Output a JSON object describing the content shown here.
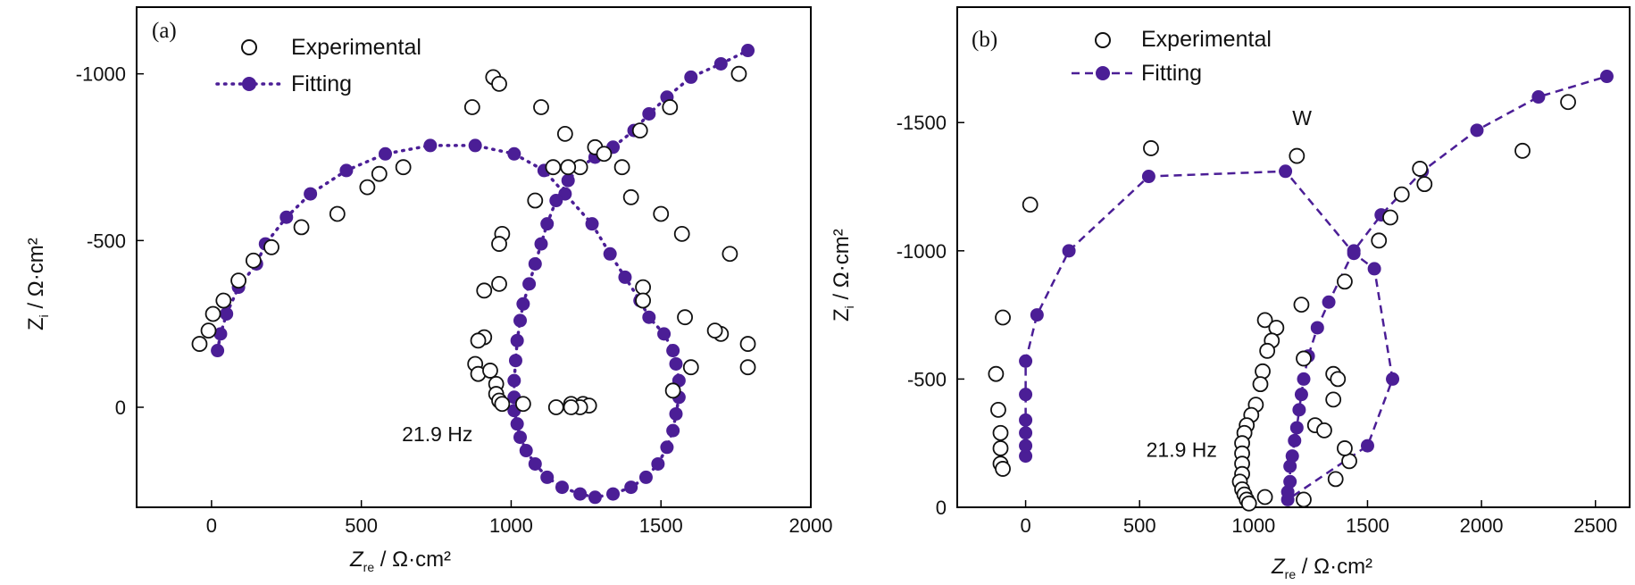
{
  "chart_data": [
    {
      "id": "a",
      "type": "scatter",
      "panel_label": "(a)",
      "xlabel": "Z_re / Ω·cm²",
      "xlabel_main": "Z",
      "xlabel_sub": "re",
      "xlabel_unit": " / Ω·cm²",
      "ylabel": "Z_i / Ω·cm²",
      "ylabel_main": "Z",
      "ylabel_sub": "i",
      "ylabel_unit": " / Ω·cm²",
      "xlim": [
        -250,
        2000
      ],
      "ylim": [
        300,
        -1200
      ],
      "xticks": [
        0,
        500,
        1000,
        1500,
        2000
      ],
      "xtick_labels": [
        "0",
        "500",
        "1000",
        "1500",
        "2000"
      ],
      "yticks": [
        0,
        -500,
        -1000
      ],
      "ytick_labels": [
        "0",
        "-500",
        "-1000"
      ],
      "legend": {
        "experimental": "Experimental",
        "fitting": "Fitting",
        "position": "top-center"
      },
      "annotations": [
        {
          "text": "21.9 Hz",
          "x": 850,
          "y": 80
        }
      ],
      "series": [
        {
          "name": "Experimental",
          "style": "open-circle",
          "points": [
            [
              -40,
              -190
            ],
            [
              -10,
              -230
            ],
            [
              5,
              -280
            ],
            [
              40,
              -320
            ],
            [
              90,
              -380
            ],
            [
              140,
              -440
            ],
            [
              200,
              -480
            ],
            [
              300,
              -540
            ],
            [
              420,
              -580
            ],
            [
              520,
              -660
            ],
            [
              560,
              -700
            ],
            [
              640,
              -720
            ],
            [
              870,
              -900
            ],
            [
              940,
              -990
            ],
            [
              960,
              -970
            ],
            [
              1100,
              -900
            ],
            [
              1180,
              -820
            ],
            [
              1280,
              -780
            ],
            [
              1310,
              -760
            ],
            [
              1530,
              -900
            ],
            [
              1760,
              -1000
            ],
            [
              1430,
              -830
            ],
            [
              1370,
              -720
            ],
            [
              1230,
              -720
            ],
            [
              1190,
              -720
            ],
            [
              1140,
              -720
            ],
            [
              1080,
              -620
            ],
            [
              1400,
              -630
            ],
            [
              1500,
              -580
            ],
            [
              1570,
              -520
            ],
            [
              1730,
              -460
            ],
            [
              1790,
              -190
            ],
            [
              1790,
              -120
            ],
            [
              1700,
              -220
            ],
            [
              1680,
              -230
            ],
            [
              1580,
              -270
            ],
            [
              1600,
              -120
            ],
            [
              1540,
              -50
            ],
            [
              1440,
              -360
            ],
            [
              1440,
              -320
            ],
            [
              970,
              -520
            ],
            [
              960,
              -490
            ],
            [
              960,
              -370
            ],
            [
              910,
              -350
            ],
            [
              910,
              -210
            ],
            [
              890,
              -200
            ],
            [
              880,
              -130
            ],
            [
              890,
              -100
            ],
            [
              930,
              -110
            ],
            [
              950,
              -70
            ],
            [
              950,
              -40
            ],
            [
              960,
              -20
            ],
            [
              970,
              -10
            ],
            [
              1040,
              -10
            ],
            [
              1150,
              0
            ],
            [
              1200,
              -10
            ],
            [
              1240,
              -10
            ],
            [
              1260,
              -5
            ],
            [
              1230,
              0
            ],
            [
              1200,
              0
            ]
          ]
        },
        {
          "name": "Fitting",
          "style": "filled-circle-dotted",
          "points": [
            [
              20,
              -170
            ],
            [
              30,
              -220
            ],
            [
              50,
              -280
            ],
            [
              90,
              -360
            ],
            [
              150,
              -430
            ],
            [
              180,
              -490
            ],
            [
              250,
              -570
            ],
            [
              330,
              -640
            ],
            [
              450,
              -710
            ],
            [
              580,
              -760
            ],
            [
              730,
              -785
            ],
            [
              880,
              -785
            ],
            [
              1010,
              -760
            ],
            [
              1110,
              -710
            ],
            [
              1180,
              -640
            ],
            [
              1270,
              -550
            ],
            [
              1330,
              -460
            ],
            [
              1380,
              -390
            ],
            [
              1430,
              -320
            ],
            [
              1460,
              -270
            ],
            [
              1510,
              -220
            ],
            [
              1540,
              -170
            ],
            [
              1550,
              -130
            ],
            [
              1560,
              -80
            ],
            [
              1560,
              -30
            ],
            [
              1550,
              20
            ],
            [
              1540,
              70
            ],
            [
              1520,
              120
            ],
            [
              1490,
              170
            ],
            [
              1450,
              210
            ],
            [
              1400,
              240
            ],
            [
              1340,
              260
            ],
            [
              1280,
              270
            ],
            [
              1230,
              260
            ],
            [
              1170,
              240
            ],
            [
              1120,
              210
            ],
            [
              1080,
              170
            ],
            [
              1050,
              130
            ],
            [
              1030,
              90
            ],
            [
              1020,
              50
            ],
            [
              1010,
              10
            ],
            [
              1010,
              -30
            ],
            [
              1010,
              -80
            ],
            [
              1015,
              -140
            ],
            [
              1020,
              -200
            ],
            [
              1030,
              -260
            ],
            [
              1040,
              -310
            ],
            [
              1060,
              -370
            ],
            [
              1080,
              -430
            ],
            [
              1100,
              -490
            ],
            [
              1120,
              -550
            ],
            [
              1150,
              -620
            ],
            [
              1190,
              -680
            ],
            [
              1230,
              -720
            ],
            [
              1280,
              -750
            ],
            [
              1340,
              -780
            ],
            [
              1410,
              -830
            ],
            [
              1460,
              -880
            ],
            [
              1520,
              -930
            ],
            [
              1600,
              -990
            ],
            [
              1700,
              -1030
            ],
            [
              1790,
              -1070
            ]
          ]
        }
      ]
    },
    {
      "id": "b",
      "type": "scatter",
      "panel_label": "(b)",
      "xlabel": "Z_re / Ω·cm²",
      "xlabel_main": "Z",
      "xlabel_sub": "re",
      "xlabel_unit": " / Ω·cm²",
      "ylabel": "Z_i / Ω·cm²",
      "ylabel_main": "Z",
      "ylabel_sub": "i",
      "ylabel_unit": " / Ω·cm²",
      "xlim": [
        -300,
        2650
      ],
      "ylim": [
        0,
        -1950
      ],
      "xticks": [
        0,
        500,
        1000,
        1500,
        2000,
        2500
      ],
      "xtick_labels": [
        "0",
        "500",
        "1000",
        "1500",
        "2000",
        "2500"
      ],
      "yticks": [
        0,
        -500,
        -1000,
        -1500
      ],
      "ytick_labels": [
        "0",
        "-500",
        "-1000",
        "-1500"
      ],
      "legend": {
        "experimental": "Experimental",
        "fitting": "Fitting",
        "position": "top-center"
      },
      "annotations": [
        {
          "text": "W",
          "x": 1170,
          "y": -1490
        },
        {
          "text": "21.9 Hz",
          "x": 960,
          "y": -225
        }
      ],
      "series": [
        {
          "name": "Experimental",
          "style": "open-circle",
          "points": [
            [
              -130,
              -520
            ],
            [
              -120,
              -380
            ],
            [
              -110,
              -290
            ],
            [
              -110,
              -230
            ],
            [
              -110,
              -170
            ],
            [
              -100,
              -150
            ],
            [
              -100,
              -740
            ],
            [
              20,
              -1180
            ],
            [
              550,
              -1400
            ],
            [
              1190,
              -1370
            ],
            [
              1210,
              -790
            ],
            [
              1220,
              -580
            ],
            [
              1050,
              -730
            ],
            [
              1100,
              -700
            ],
            [
              1080,
              -650
            ],
            [
              1060,
              -610
            ],
            [
              1040,
              -530
            ],
            [
              1030,
              -480
            ],
            [
              1010,
              -400
            ],
            [
              990,
              -360
            ],
            [
              970,
              -320
            ],
            [
              960,
              -290
            ],
            [
              950,
              -250
            ],
            [
              950,
              -210
            ],
            [
              950,
              -170
            ],
            [
              950,
              -130
            ],
            [
              940,
              -100
            ],
            [
              950,
              -70
            ],
            [
              960,
              -50
            ],
            [
              970,
              -30
            ],
            [
              980,
              -15
            ],
            [
              1050,
              -40
            ],
            [
              1220,
              -30
            ],
            [
              1270,
              -320
            ],
            [
              1310,
              -300
            ],
            [
              1350,
              -420
            ],
            [
              1350,
              -520
            ],
            [
              1370,
              -500
            ],
            [
              1360,
              -110
            ],
            [
              1420,
              -180
            ],
            [
              1400,
              -230
            ],
            [
              1550,
              -1040
            ],
            [
              1600,
              -1130
            ],
            [
              1650,
              -1220
            ],
            [
              1730,
              -1320
            ],
            [
              1750,
              -1260
            ],
            [
              1400,
              -880
            ],
            [
              2180,
              -1390
            ],
            [
              2380,
              -1580
            ]
          ]
        },
        {
          "name": "Fitting",
          "style": "filled-circle-dashed",
          "points": [
            [
              0,
              -200
            ],
            [
              0,
              -240
            ],
            [
              0,
              -290
            ],
            [
              0,
              -340
            ],
            [
              0,
              -440
            ],
            [
              0,
              -570
            ],
            [
              50,
              -750
            ],
            [
              190,
              -1000
            ],
            [
              540,
              -1290
            ],
            [
              1140,
              -1310
            ],
            [
              1440,
              -990
            ],
            [
              1530,
              -930
            ],
            [
              1610,
              -500
            ],
            [
              1500,
              -240
            ],
            [
              1150,
              -30
            ],
            [
              1150,
              -60
            ],
            [
              1160,
              -100
            ],
            [
              1160,
              -160
            ],
            [
              1170,
              -200
            ],
            [
              1180,
              -260
            ],
            [
              1190,
              -310
            ],
            [
              1200,
              -380
            ],
            [
              1210,
              -440
            ],
            [
              1220,
              -500
            ],
            [
              1240,
              -590
            ],
            [
              1280,
              -700
            ],
            [
              1330,
              -800
            ],
            [
              1440,
              -1000
            ],
            [
              1560,
              -1140
            ],
            [
              1740,
              -1310
            ],
            [
              1980,
              -1470
            ],
            [
              2250,
              -1600
            ],
            [
              2550,
              -1680
            ]
          ]
        }
      ]
    }
  ]
}
